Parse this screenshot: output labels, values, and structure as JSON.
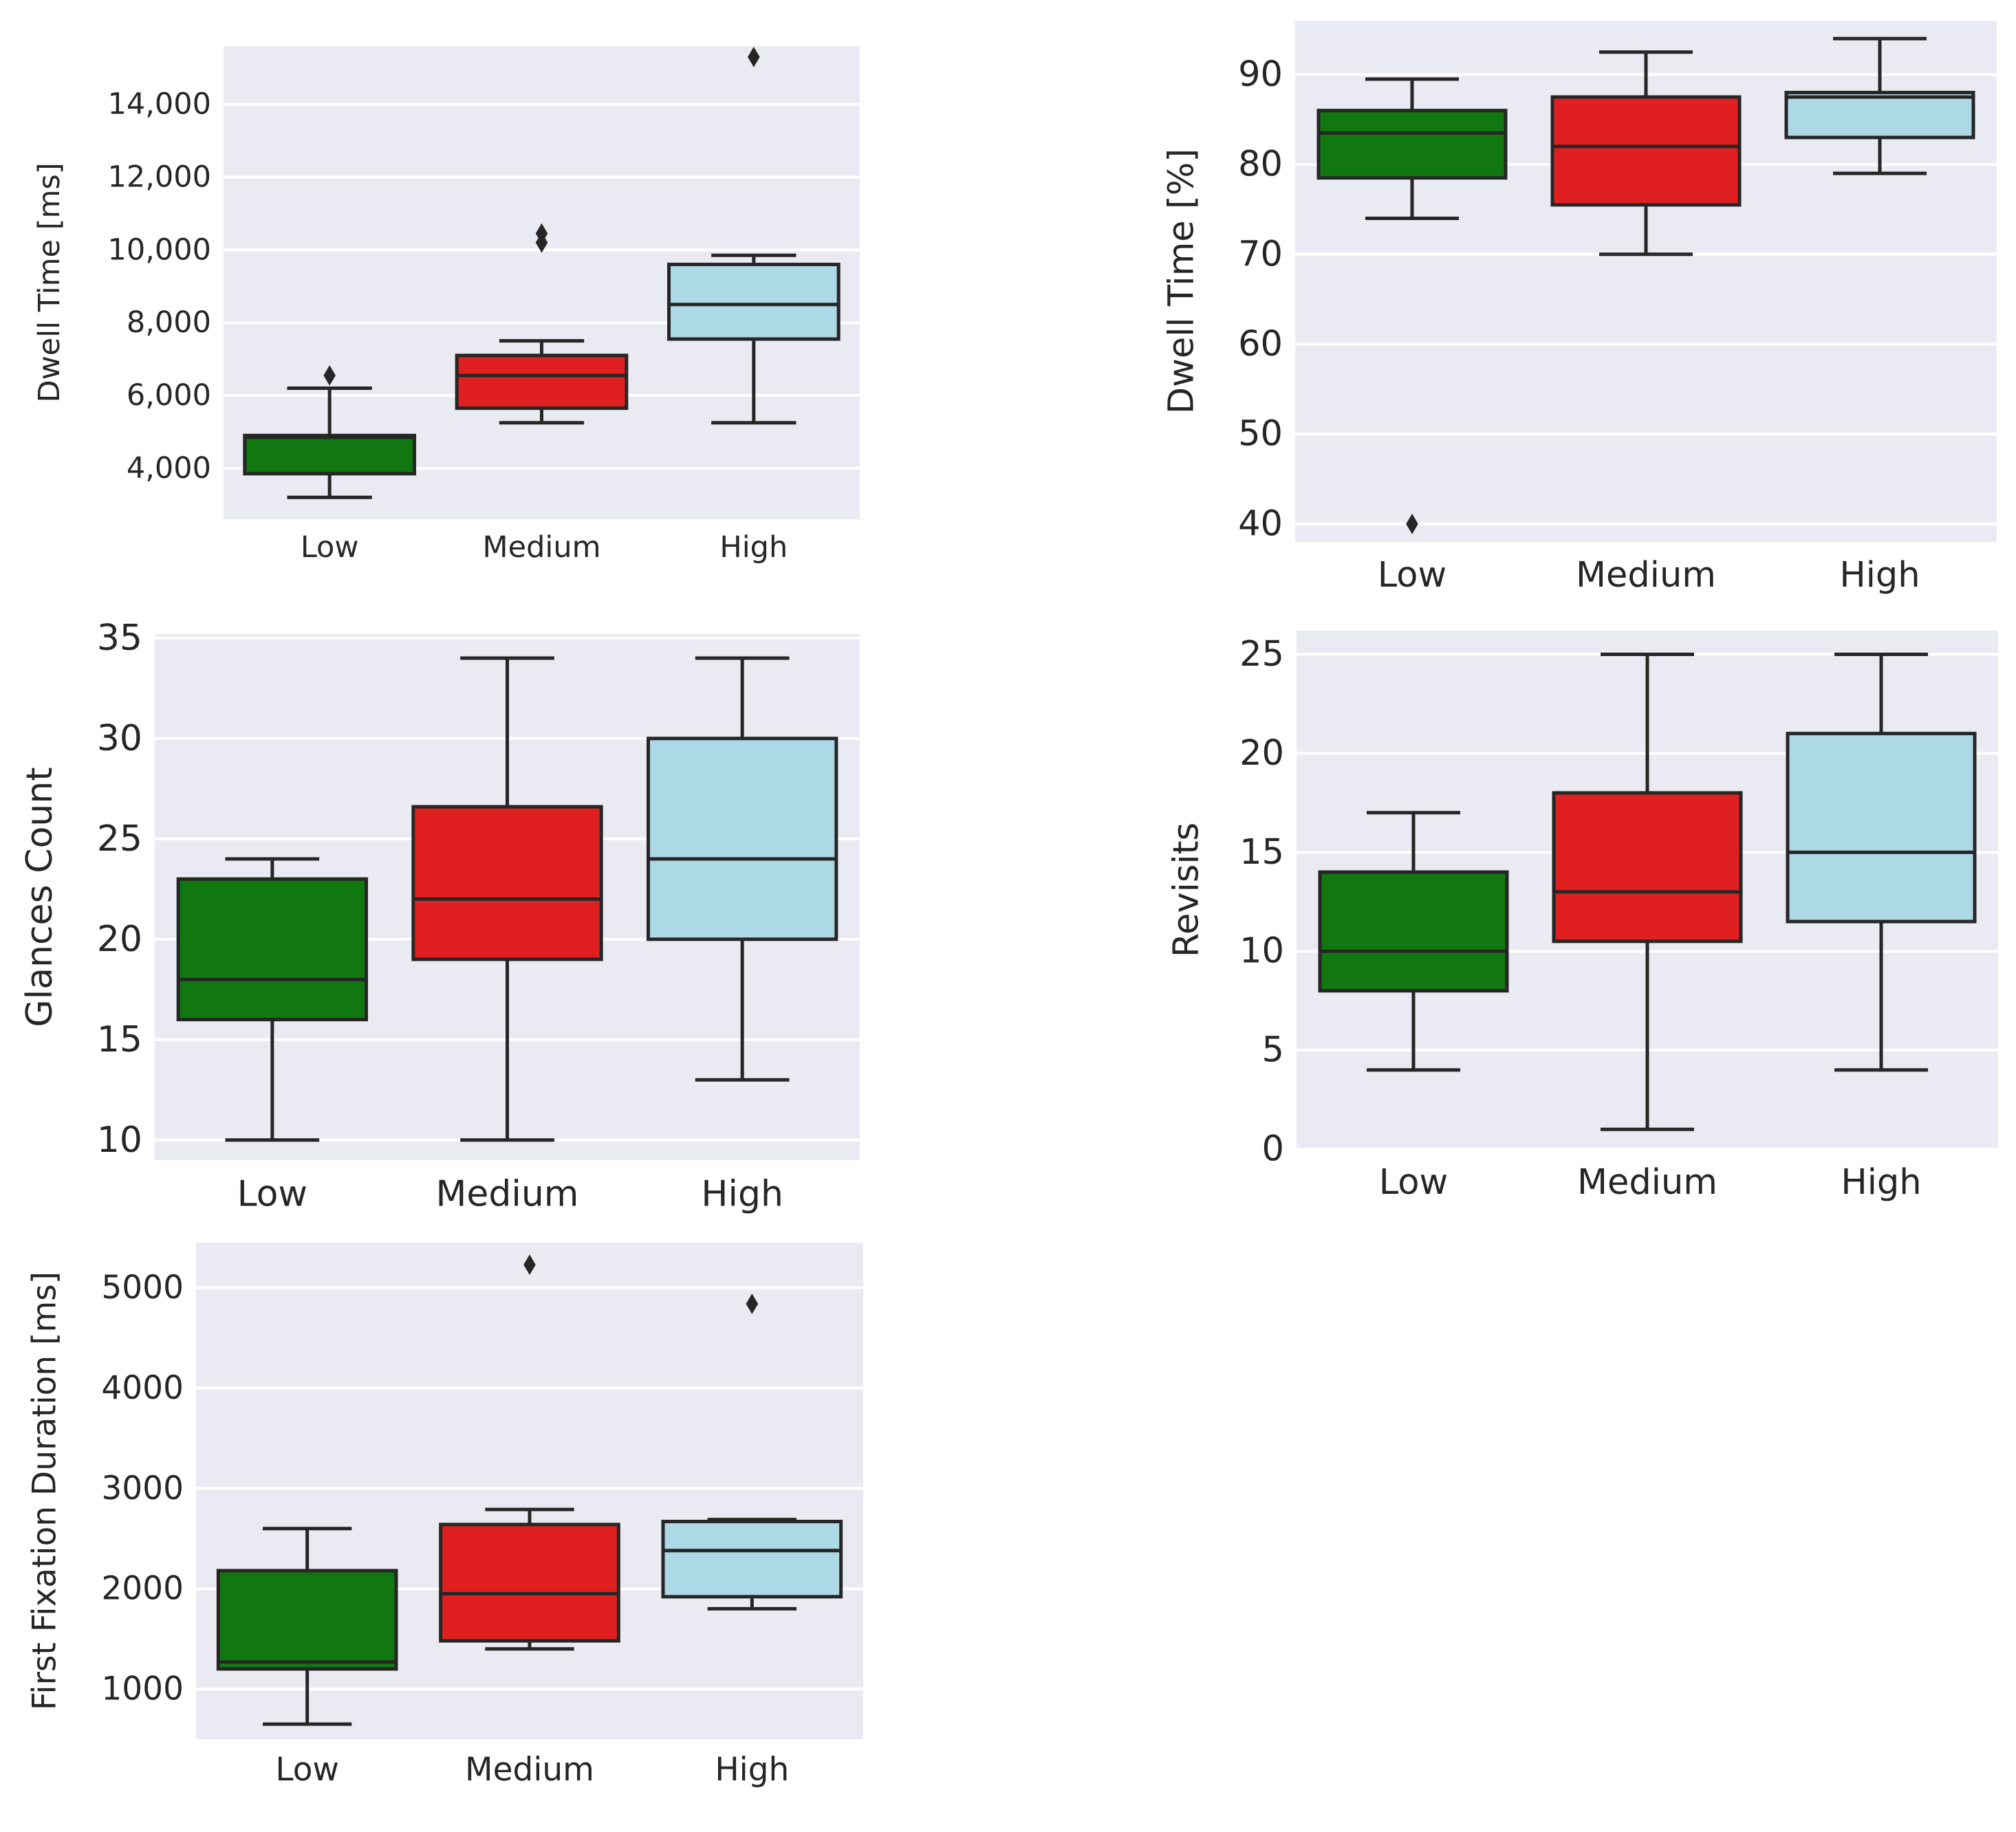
{
  "chart_data": [
    {
      "type": "box",
      "id": "dwell-ms",
      "ylabel": "Dwell Time [ms]",
      "ylim": [
        2600,
        15600
      ],
      "yticks": [
        4000,
        6000,
        8000,
        10000,
        12000,
        14000
      ],
      "ytick_labels": [
        "4,000",
        "6,000",
        "8,000",
        "10,000",
        "12,000",
        "14,000"
      ],
      "categories": [
        "Low",
        "Medium",
        "High"
      ],
      "boxes": [
        {
          "whislo": 3200,
          "q1": 3850,
          "med": 4850,
          "q3": 4900,
          "whishi": 6200,
          "fliers": [
            6550
          ]
        },
        {
          "whislo": 5250,
          "q1": 5650,
          "med": 6550,
          "q3": 7100,
          "whishi": 7500,
          "fliers": [
            10200,
            10450
          ]
        },
        {
          "whislo": 5250,
          "q1": 7550,
          "med": 8500,
          "q3": 9600,
          "whishi": 9850,
          "fliers": [
            15300
          ]
        }
      ]
    },
    {
      "type": "box",
      "id": "dwell-pct",
      "ylabel": "Dwell Time [%]",
      "ylim": [
        38,
        96
      ],
      "yticks": [
        40,
        50,
        60,
        70,
        80,
        90
      ],
      "ytick_labels": [
        "40",
        "50",
        "60",
        "70",
        "80",
        "90"
      ],
      "categories": [
        "Low",
        "Medium",
        "High"
      ],
      "boxes": [
        {
          "whislo": 74,
          "q1": 78.5,
          "med": 83.5,
          "q3": 86,
          "whishi": 89.5,
          "fliers": [
            40
          ]
        },
        {
          "whislo": 70,
          "q1": 75.5,
          "med": 82,
          "q3": 87.5,
          "whishi": 92.5,
          "fliers": []
        },
        {
          "whislo": 79,
          "q1": 83,
          "med": 87.5,
          "q3": 88,
          "whishi": 94,
          "fliers": []
        }
      ]
    },
    {
      "type": "box",
      "id": "glances",
      "ylabel": "Glances Count",
      "ylim": [
        9,
        35.2
      ],
      "yticks": [
        10,
        15,
        20,
        25,
        30,
        35
      ],
      "ytick_labels": [
        "10",
        "15",
        "20",
        "25",
        "30",
        "35"
      ],
      "categories": [
        "Low",
        "Medium",
        "High"
      ],
      "boxes": [
        {
          "whislo": 10,
          "q1": 16,
          "med": 18,
          "q3": 23,
          "whishi": 24,
          "fliers": []
        },
        {
          "whislo": 10,
          "q1": 19,
          "med": 22,
          "q3": 26.6,
          "whishi": 34,
          "fliers": []
        },
        {
          "whislo": 13,
          "q1": 20,
          "med": 24,
          "q3": 30,
          "whishi": 34,
          "fliers": []
        }
      ]
    },
    {
      "type": "box",
      "id": "revisits",
      "ylabel": "Revisits",
      "ylim": [
        0,
        26.2
      ],
      "yticks": [
        0,
        5,
        10,
        15,
        20,
        25
      ],
      "ytick_labels": [
        "0",
        "5",
        "10",
        "15",
        "20",
        "25"
      ],
      "categories": [
        "Low",
        "Medium",
        "High"
      ],
      "boxes": [
        {
          "whislo": 4,
          "q1": 8,
          "med": 10,
          "q3": 14,
          "whishi": 17,
          "fliers": []
        },
        {
          "whislo": 1,
          "q1": 10.5,
          "med": 13,
          "q3": 18,
          "whishi": 25,
          "fliers": []
        },
        {
          "whislo": 4,
          "q1": 11.5,
          "med": 15,
          "q3": 21,
          "whishi": 25,
          "fliers": []
        }
      ]
    },
    {
      "type": "box",
      "id": "first-fixation",
      "ylabel": "First Fixation Duration [ms]",
      "ylim": [
        500,
        5450
      ],
      "yticks": [
        1000,
        2000,
        3000,
        4000,
        5000
      ],
      "ytick_labels": [
        "1000",
        "2000",
        "3000",
        "4000",
        "5000"
      ],
      "categories": [
        "Low",
        "Medium",
        "High"
      ],
      "boxes": [
        {
          "whislo": 650,
          "q1": 1200,
          "med": 1270,
          "q3": 2180,
          "whishi": 2600,
          "fliers": []
        },
        {
          "whislo": 1400,
          "q1": 1480,
          "med": 1950,
          "q3": 2640,
          "whishi": 2790,
          "fliers": [
            5230
          ]
        },
        {
          "whislo": 1800,
          "q1": 1920,
          "med": 2380,
          "q3": 2670,
          "whishi": 2690,
          "fliers": [
            4840
          ]
        }
      ]
    }
  ],
  "colors": {
    "Low": "#117711",
    "Medium": "#e02020",
    "High": "#add8e6",
    "panel_bg": "#eaeaf2",
    "grid": "#ffffff",
    "line": "#262626"
  }
}
